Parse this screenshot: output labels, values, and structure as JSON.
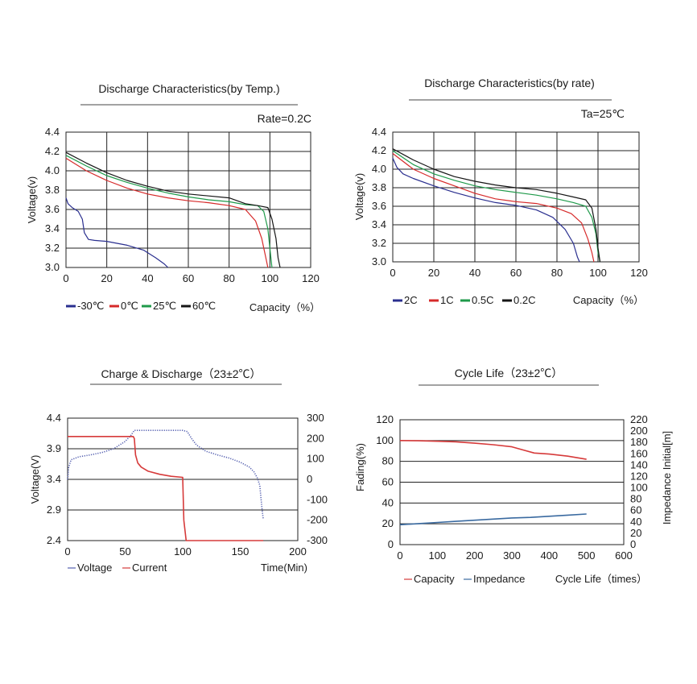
{
  "chart_data": [
    {
      "type": "line",
      "title": "Discharge Characteristics(by Temp.)",
      "note": "Rate=0.2C",
      "xlabel": "Capacity（%）",
      "ylabel": "Voltage(v)",
      "xlim": [
        0,
        120
      ],
      "ylim": [
        3.0,
        4.4
      ],
      "xticks": [
        "0",
        "20",
        "40",
        "60",
        "80",
        "100",
        "120"
      ],
      "yticks": [
        "3.0",
        "3.2",
        "3.4",
        "3.6",
        "3.8",
        "4.0",
        "4.2",
        "4.4"
      ],
      "legend_position": "bottom-left",
      "series": [
        {
          "name": "-30℃",
          "color": "#2a2f8f",
          "points": [
            [
              0,
              3.72
            ],
            [
              1,
              3.66
            ],
            [
              3,
              3.62
            ],
            [
              6,
              3.58
            ],
            [
              8,
              3.5
            ],
            [
              9,
              3.36
            ],
            [
              11,
              3.29
            ],
            [
              14,
              3.28
            ],
            [
              20,
              3.27
            ],
            [
              30,
              3.23
            ],
            [
              38,
              3.18
            ],
            [
              44,
              3.1
            ],
            [
              48,
              3.04
            ],
            [
              50,
              3.0
            ]
          ]
        },
        {
          "name": "0℃",
          "color": "#d62a2a",
          "points": [
            [
              0,
              4.13
            ],
            [
              10,
              4.0
            ],
            [
              20,
              3.9
            ],
            [
              30,
              3.82
            ],
            [
              40,
              3.76
            ],
            [
              50,
              3.72
            ],
            [
              60,
              3.69
            ],
            [
              70,
              3.67
            ],
            [
              80,
              3.64
            ],
            [
              88,
              3.6
            ],
            [
              93,
              3.48
            ],
            [
              96,
              3.3
            ],
            [
              98,
              3.1
            ],
            [
              99,
              3.0
            ]
          ]
        },
        {
          "name": "25℃",
          "color": "#1f9a4a",
          "points": [
            [
              0,
              4.16
            ],
            [
              10,
              4.05
            ],
            [
              20,
              3.95
            ],
            [
              30,
              3.88
            ],
            [
              40,
              3.82
            ],
            [
              50,
              3.77
            ],
            [
              60,
              3.73
            ],
            [
              70,
              3.7
            ],
            [
              80,
              3.68
            ],
            [
              88,
              3.65
            ],
            [
              94,
              3.64
            ],
            [
              97,
              3.58
            ],
            [
              99,
              3.4
            ],
            [
              100,
              3.2
            ],
            [
              101,
              3.0
            ]
          ]
        },
        {
          "name": "60℃",
          "color": "#151515",
          "points": [
            [
              0,
              4.19
            ],
            [
              10,
              4.08
            ],
            [
              20,
              3.98
            ],
            [
              30,
              3.9
            ],
            [
              40,
              3.84
            ],
            [
              50,
              3.79
            ],
            [
              60,
              3.76
            ],
            [
              70,
              3.74
            ],
            [
              80,
              3.72
            ],
            [
              88,
              3.66
            ],
            [
              94,
              3.64
            ],
            [
              99,
              3.62
            ],
            [
              101,
              3.5
            ],
            [
              103,
              3.3
            ],
            [
              104,
              3.1
            ],
            [
              105,
              3.0
            ]
          ]
        }
      ]
    },
    {
      "type": "line",
      "title": "Discharge Characteristics(by rate)",
      "note": "Ta=25℃",
      "xlabel": "Capacity（%）",
      "ylabel": "Voltage(v)",
      "xlim": [
        0,
        120
      ],
      "ylim": [
        3.0,
        4.4
      ],
      "xticks": [
        "0",
        "20",
        "40",
        "60",
        "80",
        "100",
        "120"
      ],
      "yticks": [
        "3.0",
        "3.2",
        "3.4",
        "3.6",
        "3.8",
        "4.0",
        "4.2",
        "4.4"
      ],
      "legend_position": "bottom-left",
      "series": [
        {
          "name": "2C",
          "color": "#2a2f8f",
          "points": [
            [
              0,
              4.12
            ],
            [
              2,
              4.02
            ],
            [
              5,
              3.95
            ],
            [
              10,
              3.9
            ],
            [
              20,
              3.82
            ],
            [
              30,
              3.75
            ],
            [
              40,
              3.69
            ],
            [
              50,
              3.64
            ],
            [
              60,
              3.61
            ],
            [
              70,
              3.56
            ],
            [
              78,
              3.48
            ],
            [
              84,
              3.35
            ],
            [
              88,
              3.2
            ],
            [
              90,
              3.05
            ],
            [
              91,
              3.0
            ]
          ]
        },
        {
          "name": "1C",
          "color": "#d62a2a",
          "points": [
            [
              0,
              4.17
            ],
            [
              10,
              4.0
            ],
            [
              20,
              3.9
            ],
            [
              30,
              3.82
            ],
            [
              40,
              3.74
            ],
            [
              50,
              3.68
            ],
            [
              60,
              3.65
            ],
            [
              70,
              3.63
            ],
            [
              80,
              3.58
            ],
            [
              87,
              3.52
            ],
            [
              92,
              3.42
            ],
            [
              95,
              3.25
            ],
            [
              97,
              3.1
            ],
            [
              98,
              3.0
            ]
          ]
        },
        {
          "name": "0.5C",
          "color": "#1f9a4a",
          "points": [
            [
              0,
              4.2
            ],
            [
              10,
              4.05
            ],
            [
              20,
              3.95
            ],
            [
              30,
              3.88
            ],
            [
              40,
              3.82
            ],
            [
              50,
              3.78
            ],
            [
              60,
              3.75
            ],
            [
              70,
              3.72
            ],
            [
              80,
              3.68
            ],
            [
              88,
              3.64
            ],
            [
              94,
              3.6
            ],
            [
              97,
              3.48
            ],
            [
              99,
              3.3
            ],
            [
              100,
              3.1
            ],
            [
              101,
              3.0
            ]
          ]
        },
        {
          "name": "0.2C",
          "color": "#151515",
          "points": [
            [
              0,
              4.22
            ],
            [
              10,
              4.1
            ],
            [
              20,
              4.0
            ],
            [
              30,
              3.92
            ],
            [
              40,
              3.87
            ],
            [
              50,
              3.83
            ],
            [
              60,
              3.8
            ],
            [
              70,
              3.78
            ],
            [
              80,
              3.74
            ],
            [
              88,
              3.7
            ],
            [
              94,
              3.67
            ],
            [
              97,
              3.58
            ],
            [
              99,
              3.35
            ],
            [
              100,
              3.15
            ],
            [
              101,
              3.0
            ]
          ]
        }
      ]
    },
    {
      "type": "line",
      "title": "Charge & Discharge（23±2℃）",
      "xlabel": "Time(Min)",
      "ylabel": "Voltage(V)",
      "xlim": [
        0,
        200
      ],
      "ylim": [
        2.4,
        4.4
      ],
      "y2lim": [
        -300,
        300
      ],
      "xticks": [
        "0",
        "50",
        "100",
        "150",
        "200"
      ],
      "yticks": [
        "2.4",
        "2.9",
        "3.4",
        "3.9",
        "4.4"
      ],
      "y2ticks": [
        "-300",
        "-200",
        "-100",
        "0",
        "100",
        "200",
        "300"
      ],
      "legend_position": "bottom-left",
      "series": [
        {
          "name": "Voltage",
          "color": "#5560b0",
          "axis": "left",
          "points": [
            [
              0,
              3.4
            ],
            [
              1,
              3.6
            ],
            [
              3,
              3.72
            ],
            [
              10,
              3.77
            ],
            [
              20,
              3.8
            ],
            [
              30,
              3.84
            ],
            [
              40,
              3.9
            ],
            [
              50,
              4.02
            ],
            [
              55,
              4.12
            ],
            [
              58,
              4.2
            ],
            [
              62,
              4.2
            ],
            [
              80,
              4.2
            ],
            [
              100,
              4.2
            ],
            [
              104,
              4.18
            ],
            [
              108,
              4.06
            ],
            [
              112,
              3.96
            ],
            [
              120,
              3.86
            ],
            [
              130,
              3.8
            ],
            [
              140,
              3.75
            ],
            [
              150,
              3.68
            ],
            [
              158,
              3.6
            ],
            [
              162,
              3.52
            ],
            [
              165,
              3.42
            ],
            [
              167,
              3.3
            ],
            [
              168,
              3.1
            ],
            [
              169,
              2.9
            ],
            [
              170,
              2.75
            ]
          ]
        },
        {
          "name": "Current",
          "color": "#d63a3a",
          "axis": "right",
          "points": [
            [
              0,
              210
            ],
            [
              57,
              210
            ],
            [
              58,
              200
            ],
            [
              59,
              120
            ],
            [
              61,
              80
            ],
            [
              64,
              60
            ],
            [
              70,
              40
            ],
            [
              80,
              25
            ],
            [
              90,
              15
            ],
            [
              100,
              10
            ],
            [
              101,
              -200
            ],
            [
              103,
              -300
            ],
            [
              170,
              -300
            ]
          ]
        }
      ]
    },
    {
      "type": "line",
      "title": "Cycle Life（23±2℃）",
      "xlabel": "Cycle Life（times）",
      "ylabel": "Fading(%)",
      "y2label": "Impedance Initial[m]",
      "xlim": [
        0,
        600
      ],
      "ylim": [
        0,
        120
      ],
      "y2lim": [
        0,
        220
      ],
      "xticks": [
        "0",
        "100",
        "200",
        "300",
        "400",
        "500",
        "600"
      ],
      "yticks": [
        "0",
        "20",
        "40",
        "60",
        "80",
        "100",
        "120"
      ],
      "y2ticks": [
        "0",
        "20",
        "40",
        "60",
        "80",
        "100",
        "120",
        "140",
        "160",
        "180",
        "200",
        "220"
      ],
      "legend_position": "bottom-left",
      "series": [
        {
          "name": "Capacity",
          "color": "#d63a3a",
          "axis": "left",
          "points": [
            [
              0,
              100
            ],
            [
              50,
              99.8
            ],
            [
              100,
              99.3
            ],
            [
              150,
              98.8
            ],
            [
              200,
              97.5
            ],
            [
              250,
              96
            ],
            [
              300,
              94
            ],
            [
              330,
              91
            ],
            [
              360,
              88
            ],
            [
              400,
              87
            ],
            [
              450,
              85
            ],
            [
              500,
              82
            ]
          ]
        },
        {
          "name": "Impedance",
          "color": "#3a6aa0",
          "axis": "right",
          "points": [
            [
              0,
              35
            ],
            [
              50,
              37
            ],
            [
              100,
              39
            ],
            [
              150,
              41
            ],
            [
              200,
              43
            ],
            [
              250,
              45
            ],
            [
              300,
              47
            ],
            [
              350,
              48
            ],
            [
              400,
              50
            ],
            [
              450,
              52
            ],
            [
              500,
              54
            ]
          ]
        }
      ]
    }
  ]
}
